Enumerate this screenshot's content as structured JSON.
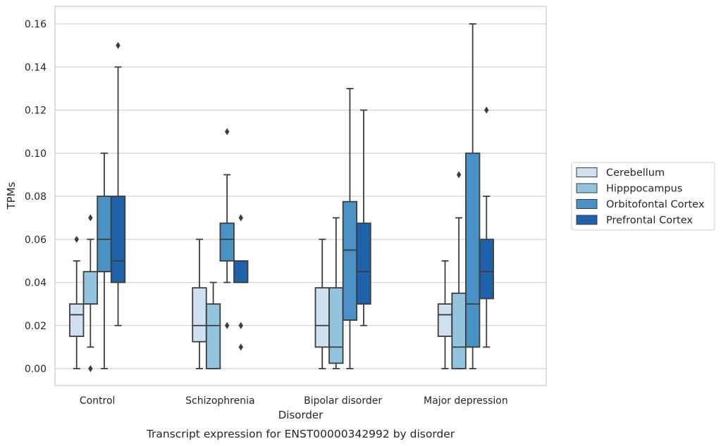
{
  "chart_data": {
    "type": "box",
    "caption": "Transcript expression for ENST00000342992 by disorder",
    "xlabel": "Disorder",
    "ylabel": "TPMs",
    "ylim": [
      -0.008,
      0.168
    ],
    "yticks": [
      "0.00",
      "0.02",
      "0.04",
      "0.06",
      "0.08",
      "0.10",
      "0.12",
      "0.14",
      "0.16"
    ],
    "ytick_values": [
      0.0,
      0.02,
      0.04,
      0.06,
      0.08,
      0.1,
      0.12,
      0.14,
      0.16
    ],
    "grid": "horizontal",
    "legend_position": "right",
    "categories": [
      "Control",
      "Schizophrenia",
      "Bipolar disorder",
      "Major depression"
    ],
    "series": [
      {
        "name": "Cerebellum",
        "color": "#cfe0f1",
        "boxes": [
          {
            "whislo": 0.0,
            "q1": 0.015,
            "med": 0.025,
            "q3": 0.03,
            "whishi": 0.05,
            "fliers": [
              0.06
            ]
          },
          {
            "whislo": 0.0,
            "q1": 0.0125,
            "med": 0.02,
            "q3": 0.0375,
            "whishi": 0.06,
            "fliers": []
          },
          {
            "whislo": 0.0,
            "q1": 0.01,
            "med": 0.02,
            "q3": 0.0375,
            "whishi": 0.06,
            "fliers": []
          },
          {
            "whislo": 0.0,
            "q1": 0.015,
            "med": 0.025,
            "q3": 0.03,
            "whishi": 0.05,
            "fliers": []
          }
        ]
      },
      {
        "name": "Hipppocampus",
        "color": "#93c4de",
        "boxes": [
          {
            "whislo": 0.01,
            "q1": 0.03,
            "med": 0.03,
            "q3": 0.045,
            "whishi": 0.06,
            "fliers": [
              0.07,
              0.0
            ]
          },
          {
            "whislo": 0.0,
            "q1": 0.0,
            "med": 0.02,
            "q3": 0.03,
            "whishi": 0.04,
            "fliers": []
          },
          {
            "whislo": 0.0,
            "q1": 0.0025,
            "med": 0.01,
            "q3": 0.0375,
            "whishi": 0.07,
            "fliers": []
          },
          {
            "whislo": 0.0,
            "q1": 0.0,
            "med": 0.01,
            "q3": 0.035,
            "whishi": 0.07,
            "fliers": [
              0.09
            ]
          }
        ]
      },
      {
        "name": "Orbitofontal Cortex",
        "color": "#4a91c6",
        "boxes": [
          {
            "whislo": 0.0,
            "q1": 0.045,
            "med": 0.06,
            "q3": 0.08,
            "whishi": 0.1,
            "fliers": []
          },
          {
            "whislo": 0.04,
            "q1": 0.05,
            "med": 0.06,
            "q3": 0.0675,
            "whishi": 0.09,
            "fliers": [
              0.11,
              0.02
            ]
          },
          {
            "whislo": 0.0,
            "q1": 0.0225,
            "med": 0.055,
            "q3": 0.0775,
            "whishi": 0.13,
            "fliers": []
          },
          {
            "whislo": 0.0,
            "q1": 0.01,
            "med": 0.03,
            "q3": 0.1,
            "whishi": 0.16,
            "fliers": []
          }
        ]
      },
      {
        "name": "Prefrontal Cortex",
        "color": "#1d62aa",
        "boxes": [
          {
            "whislo": 0.02,
            "q1": 0.04,
            "med": 0.05,
            "q3": 0.08,
            "whishi": 0.14,
            "fliers": [
              0.15
            ]
          },
          {
            "whislo": 0.04,
            "q1": 0.04,
            "med": 0.05,
            "q3": 0.05,
            "whishi": 0.05,
            "fliers": [
              0.07,
              0.02,
              0.01
            ]
          },
          {
            "whislo": 0.02,
            "q1": 0.03,
            "med": 0.045,
            "q3": 0.0675,
            "whishi": 0.12,
            "fliers": []
          },
          {
            "whislo": 0.01,
            "q1": 0.0325,
            "med": 0.045,
            "q3": 0.06,
            "whishi": 0.08,
            "fliers": [
              0.12
            ]
          }
        ]
      }
    ]
  }
}
